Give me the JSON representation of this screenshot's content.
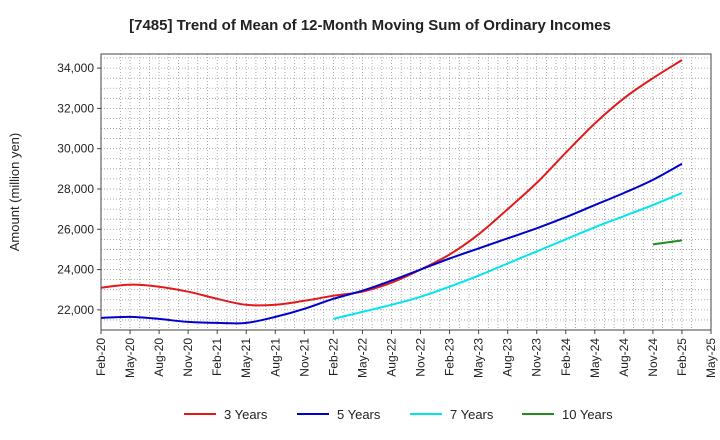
{
  "chart_data": {
    "type": "line",
    "title": "[7485]  Trend of Mean of 12-Month Moving Sum of Ordinary Incomes",
    "xlabel": "",
    "ylabel": "Amount (million yen)",
    "ylim": [
      21000,
      34700
    ],
    "yticks": [
      22000,
      24000,
      26000,
      28000,
      30000,
      32000,
      34000
    ],
    "ytick_labels": [
      "22,000",
      "24,000",
      "26,000",
      "28,000",
      "30,000",
      "32,000",
      "34,000"
    ],
    "categories": [
      "Feb-20",
      "May-20",
      "Aug-20",
      "Nov-20",
      "Feb-21",
      "May-21",
      "Aug-21",
      "Nov-21",
      "Feb-22",
      "May-22",
      "Aug-22",
      "Nov-22",
      "Feb-23",
      "May-23",
      "Aug-23",
      "Nov-23",
      "Feb-24",
      "May-24",
      "Aug-24",
      "Nov-24",
      "Feb-25",
      "May-25"
    ],
    "grid": true,
    "legend_position": "bottom",
    "series": [
      {
        "name": "3 Years",
        "color": "#e31a1c",
        "values": [
          23100,
          23250,
          23150,
          22900,
          22550,
          22250,
          22250,
          22450,
          22700,
          22900,
          23350,
          24000,
          24750,
          25750,
          27000,
          28300,
          29800,
          31250,
          32500,
          33500,
          34400,
          null
        ]
      },
      {
        "name": "5 Years",
        "color": "#0000cc",
        "values": [
          21600,
          21650,
          21550,
          21400,
          21350,
          21350,
          21650,
          22050,
          22550,
          22950,
          23450,
          24000,
          24550,
          25050,
          25550,
          26050,
          26600,
          27200,
          27800,
          28450,
          29250,
          null
        ]
      },
      {
        "name": "7 Years",
        "color": "#00e5ee",
        "values": [
          null,
          null,
          null,
          null,
          null,
          null,
          null,
          null,
          21550,
          21900,
          22250,
          22650,
          23150,
          23700,
          24300,
          24900,
          25500,
          26100,
          26650,
          27200,
          27800,
          null
        ]
      },
      {
        "name": "10 Years",
        "color": "#228b22",
        "values": [
          null,
          null,
          null,
          null,
          null,
          null,
          null,
          null,
          null,
          null,
          null,
          null,
          null,
          null,
          null,
          null,
          null,
          null,
          null,
          25250,
          25450,
          null
        ]
      }
    ]
  }
}
